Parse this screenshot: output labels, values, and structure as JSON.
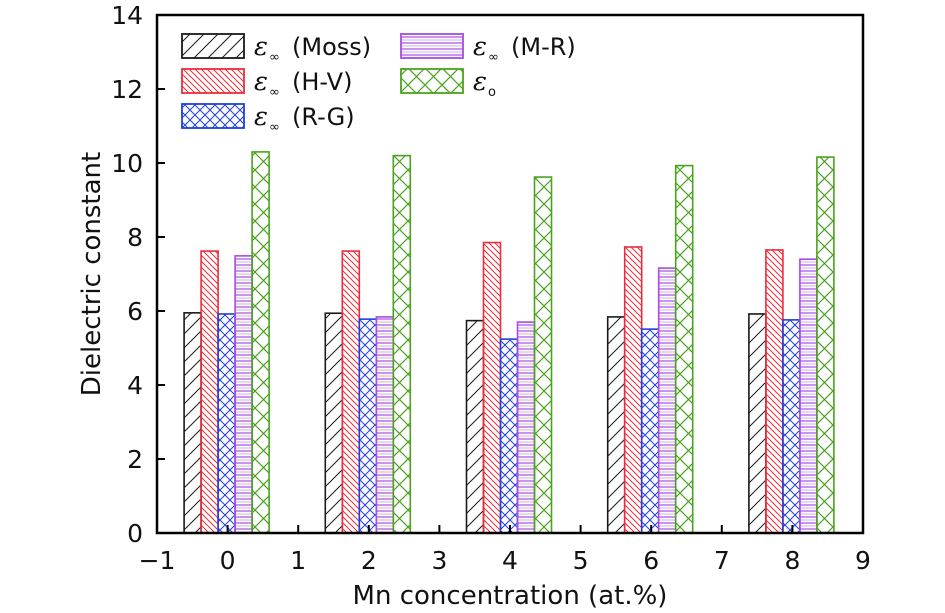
{
  "chart_data": {
    "type": "bar",
    "title": "",
    "xlabel": "Mn concentration (at.%)",
    "ylabel": "Dielectric constant",
    "xlim": [
      -1,
      9
    ],
    "ylim": [
      0,
      14
    ],
    "xticks": [
      -1,
      0,
      1,
      2,
      3,
      4,
      5,
      6,
      7,
      8,
      9
    ],
    "xtick_labels": [
      "−1",
      "0",
      "1",
      "2",
      "3",
      "4",
      "5",
      "6",
      "7",
      "8",
      "9"
    ],
    "yticks": [
      0,
      2,
      4,
      6,
      8,
      10,
      12,
      14
    ],
    "ytick_labels": [
      "0",
      "2",
      "4",
      "6",
      "8",
      "10",
      "12",
      "14"
    ],
    "grid": false,
    "legend_position": "top-left",
    "x": [
      0,
      2,
      4,
      6,
      8
    ],
    "series": [
      {
        "name": "ε∞ (Moss)",
        "symbol": "ε",
        "subscript": "∞",
        "suffix": "(Moss)",
        "color": "#1a1a1a",
        "pattern": "forward-diagonal",
        "values": [
          5.95,
          5.94,
          5.74,
          5.84,
          5.92
        ]
      },
      {
        "name": "ε∞ (H-V)",
        "symbol": "ε",
        "subscript": "∞",
        "suffix": "(H-V)",
        "color": "#ee2b3b",
        "pattern": "back-diagonal",
        "values": [
          7.62,
          7.62,
          7.85,
          7.73,
          7.65
        ]
      },
      {
        "name": "ε∞ (R-G)",
        "symbol": "ε",
        "subscript": "∞",
        "suffix": "(R-G)",
        "color": "#1f3fdf",
        "pattern": "crosshatch",
        "values": [
          5.92,
          5.78,
          5.24,
          5.51,
          5.76
        ]
      },
      {
        "name": "ε∞ (M-R)",
        "symbol": "ε",
        "subscript": "∞",
        "suffix": "(M-R)",
        "color": "#a64de0",
        "pattern": "horizontal",
        "values": [
          7.49,
          5.84,
          5.7,
          7.16,
          7.4
        ]
      },
      {
        "name": "εo",
        "symbol": "ε",
        "subscript": "o",
        "suffix": "",
        "color": "#4aa31c",
        "pattern": "diamond-grid",
        "values": [
          10.3,
          10.2,
          9.62,
          9.93,
          10.16
        ]
      }
    ]
  }
}
